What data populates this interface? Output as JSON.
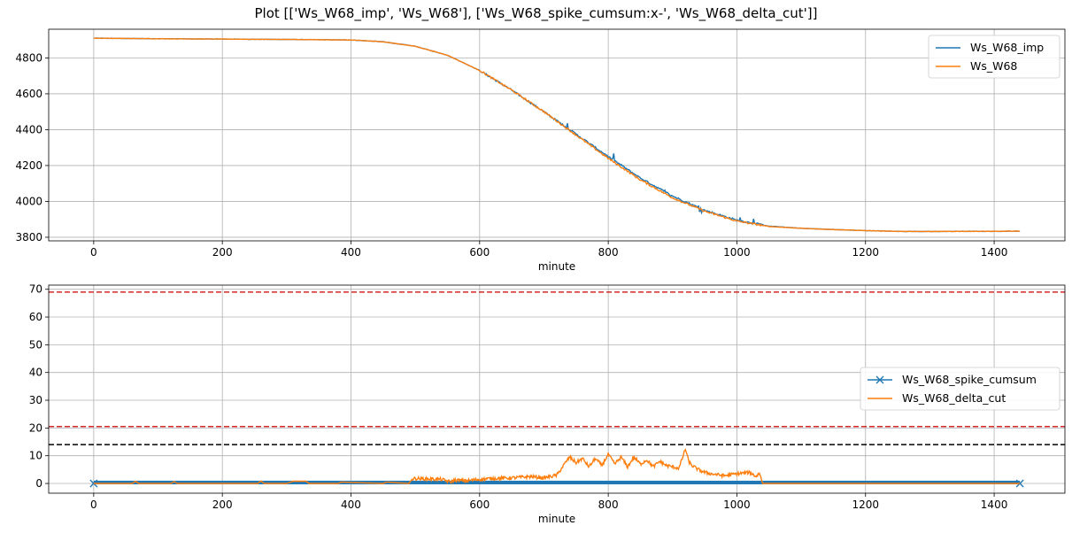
{
  "figure": {
    "title": "Plot [['Ws_W68_imp', 'Ws_W68'], ['Ws_W68_spike_cumsum:x-', 'Ws_W68_delta_cut']]"
  },
  "colors": {
    "blue": "#1f77b4",
    "orange": "#ff7f0e",
    "red_dashed": "#d62728",
    "black_dashed": "#000000",
    "grid": "#b0b0b0"
  },
  "chart_data": [
    {
      "type": "line",
      "xlabel": "minute",
      "ylabel": "",
      "xlim": [
        -70,
        1510
      ],
      "ylim": [
        3780,
        4960
      ],
      "xticks": [
        0,
        200,
        400,
        600,
        800,
        1000,
        1200,
        1400
      ],
      "yticks": [
        3800,
        4000,
        4200,
        4400,
        4600,
        4800
      ],
      "grid": true,
      "legend": "top-right",
      "series": [
        {
          "name": "Ws_W68_imp",
          "color": "#1f77b4",
          "x": [
            0,
            100,
            200,
            300,
            400,
            450,
            500,
            550,
            600,
            650,
            700,
            750,
            800,
            850,
            900,
            950,
            1000,
            1050,
            1100,
            1150,
            1200,
            1250,
            1300,
            1350,
            1400,
            1440
          ],
          "y": [
            4910,
            4907,
            4905,
            4903,
            4900,
            4890,
            4865,
            4815,
            4730,
            4620,
            4500,
            4375,
            4250,
            4130,
            4030,
            3950,
            3895,
            3862,
            3850,
            3843,
            3837,
            3833,
            3832,
            3833,
            3833,
            3834
          ]
        },
        {
          "name": "Ws_W68",
          "color": "#ff7f0e",
          "x": [
            0,
            100,
            200,
            300,
            400,
            450,
            500,
            550,
            600,
            650,
            700,
            750,
            800,
            850,
            900,
            950,
            1000,
            1050,
            1100,
            1150,
            1200,
            1250,
            1300,
            1350,
            1400,
            1440
          ],
          "y": [
            4910,
            4907,
            4905,
            4903,
            4900,
            4890,
            4865,
            4815,
            4730,
            4620,
            4500,
            4370,
            4240,
            4120,
            4020,
            3945,
            3890,
            3860,
            3850,
            3843,
            3837,
            3833,
            3832,
            3833,
            3833,
            3834
          ]
        }
      ]
    },
    {
      "type": "line",
      "xlabel": "minute",
      "ylabel": "",
      "xlim": [
        -70,
        1510
      ],
      "ylim": [
        -3.5,
        71.5
      ],
      "xticks": [
        0,
        200,
        400,
        600,
        800,
        1000,
        1200,
        1400
      ],
      "yticks": [
        0,
        10,
        20,
        30,
        40,
        50,
        60,
        70
      ],
      "grid": true,
      "legend": "center-right",
      "hlines": [
        {
          "y": 69,
          "color": "#d62728",
          "style": "dashed"
        },
        {
          "y": 20.5,
          "color": "#d62728",
          "style": "dashed"
        },
        {
          "y": 14,
          "color": "#000000",
          "style": "dashed"
        }
      ],
      "series": [
        {
          "name": "Ws_W68_spike_cumsum",
          "color": "#1f77b4",
          "marker": "x",
          "x": [
            0,
            1440
          ],
          "y": [
            0,
            0
          ],
          "y_range": [
            -0.3,
            1.0
          ]
        },
        {
          "name": "Ws_W68_delta_cut",
          "color": "#ff7f0e",
          "x": [
            0,
            60,
            65,
            70,
            120,
            125,
            130,
            255,
            260,
            265,
            300,
            310,
            330,
            335,
            380,
            385,
            450,
            455,
            490,
            495,
            500,
            540,
            555,
            560,
            580,
            600,
            620,
            650,
            680,
            700,
            720,
            735,
            740,
            750,
            760,
            770,
            780,
            790,
            800,
            810,
            820,
            830,
            840,
            850,
            860,
            870,
            880,
            890,
            900,
            910,
            915,
            920,
            925,
            930,
            940,
            950,
            960,
            980,
            1000,
            1020,
            1030,
            1035,
            1040,
            1100,
            1200,
            1300,
            1440
          ],
          "y": [
            0,
            0,
            0.8,
            0,
            0,
            0.7,
            0,
            0,
            0.9,
            0,
            0,
            0.8,
            0.8,
            0,
            0,
            0.5,
            0,
            0.5,
            0,
            1.5,
            1.8,
            1.5,
            0.5,
            1.2,
            1.0,
            1.5,
            1.8,
            2.0,
            2.5,
            2.0,
            3.0,
            8.0,
            9.5,
            7.5,
            9.0,
            6.0,
            9.0,
            6.5,
            10.5,
            7.0,
            9.5,
            6.0,
            9.5,
            7.0,
            8.5,
            6.0,
            8.0,
            6.5,
            6.0,
            5.5,
            9.0,
            12.5,
            8.0,
            6.5,
            5.0,
            4.0,
            3.5,
            2.8,
            3.5,
            4.0,
            2.5,
            3.8,
            0,
            0,
            0,
            0,
            0
          ]
        }
      ]
    }
  ]
}
